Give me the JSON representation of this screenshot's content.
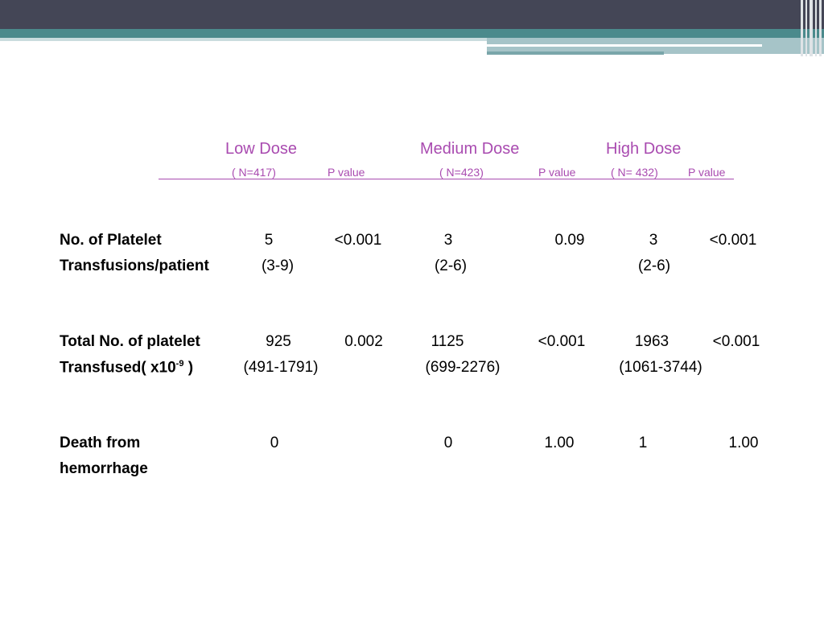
{
  "columns": {
    "low_dose": "Low Dose",
    "medium_dose": "Medium Dose",
    "high_dose": "High Dose"
  },
  "subheaders": {
    "low_n": "( N=417)",
    "low_p": "P value",
    "medium_n": "( N=423)",
    "medium_p": "P value",
    "high_n": "( N= 432)",
    "high_p": "P value"
  },
  "rows": [
    {
      "label_line1": "No. of Platelet",
      "label_line2": "Transfusions/patient",
      "low": "5",
      "low_range": "(3-9)",
      "low_p": "<0.001",
      "medium": "3",
      "medium_range": "(2-6)",
      "medium_p": "0.09",
      "high": "3",
      "high_range": "(2-6)",
      "high_p": "<0.001"
    },
    {
      "label_line1": "Total No. of platelet",
      "label_line2_prefix": "Transfused( x10",
      "label_line2_sup": "-9",
      "label_line2_suffix": " )",
      "low": "925",
      "low_range": "(491-1791)",
      "low_p": "0.002",
      "medium": "1125",
      "medium_range": "(699-2276)",
      "medium_p": "<0.001",
      "high": "1963",
      "high_range": "(1061-3744)",
      "high_p": "<0.001"
    },
    {
      "label_line1": "Death from",
      "label_line2": "hemorrhage",
      "low": "0",
      "medium": "0",
      "medium_p": "1.00",
      "high": "1",
      "high_p": "1.00"
    }
  ]
}
